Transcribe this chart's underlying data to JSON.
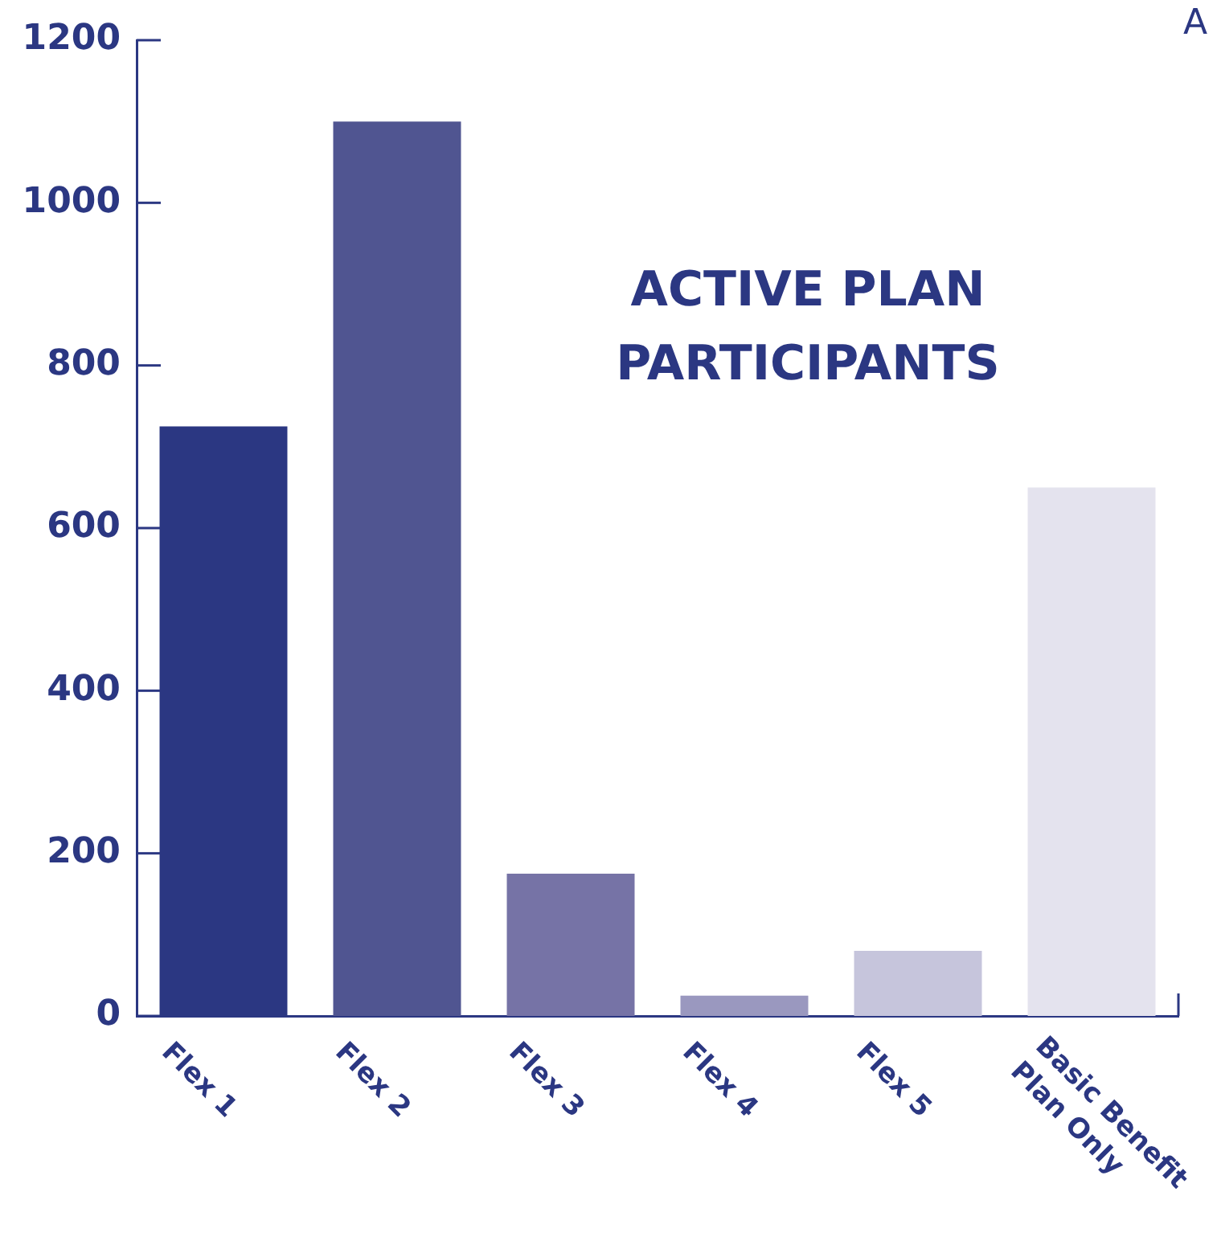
{
  "chart_data": {
    "type": "bar",
    "title": "ACTIVE PLAN PARTICIPANTS",
    "categories": [
      "Flex 1",
      "Flex 2",
      "Flex 3",
      "Flex 4",
      "Flex 5",
      "Basic Benefit Plan Only"
    ],
    "values": [
      725,
      1100,
      175,
      25,
      80,
      650
    ],
    "colors": [
      "#2b3782",
      "#505591",
      "#7673a6",
      "#9a98bf",
      "#c6c5dc",
      "#e4e3ee"
    ],
    "ylim": [
      0,
      1200
    ],
    "yticks": [
      0,
      200,
      400,
      600,
      800,
      1000,
      1200
    ],
    "grid": false,
    "legend": false,
    "annotations": [
      "A"
    ]
  }
}
